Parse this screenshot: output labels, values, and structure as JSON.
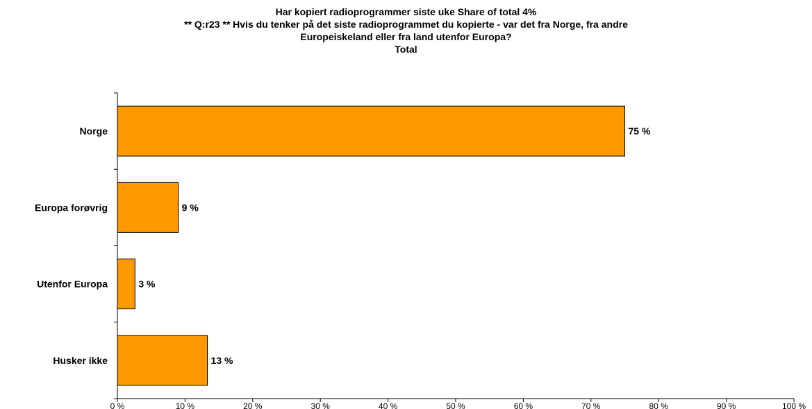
{
  "chart_data": {
    "type": "bar",
    "orientation": "horizontal",
    "title_lines": [
      "Har kopiert radioprogrammer siste uke     Share of total 4%",
      "** Q:r23 ** Hvis du tenker på det siste radioprogrammet du kopierte - var det fra Norge, fra andre",
      "Europeiskeland eller fra land utenfor Europa?",
      "Total"
    ],
    "categories": [
      "Norge",
      "Europa forøvrig",
      "Utenfor Europa",
      "Husker ikke"
    ],
    "values": [
      75,
      9,
      2.6,
      13.3
    ],
    "value_labels": [
      "75 %",
      "9 %",
      "3 %",
      "13 %"
    ],
    "xlim": [
      0,
      100
    ],
    "x_ticks": [
      0,
      10,
      20,
      30,
      40,
      50,
      60,
      70,
      80,
      90,
      100
    ],
    "x_tick_labels": [
      "0 %",
      "10 %",
      "20 %",
      "30 %",
      "40 %",
      "50 %",
      "60 %",
      "70 %",
      "80 %",
      "90 %",
      "100 %"
    ],
    "bar_color": "#ff9900",
    "bar_border_color": "#000000",
    "grid": false,
    "legend": "none"
  }
}
